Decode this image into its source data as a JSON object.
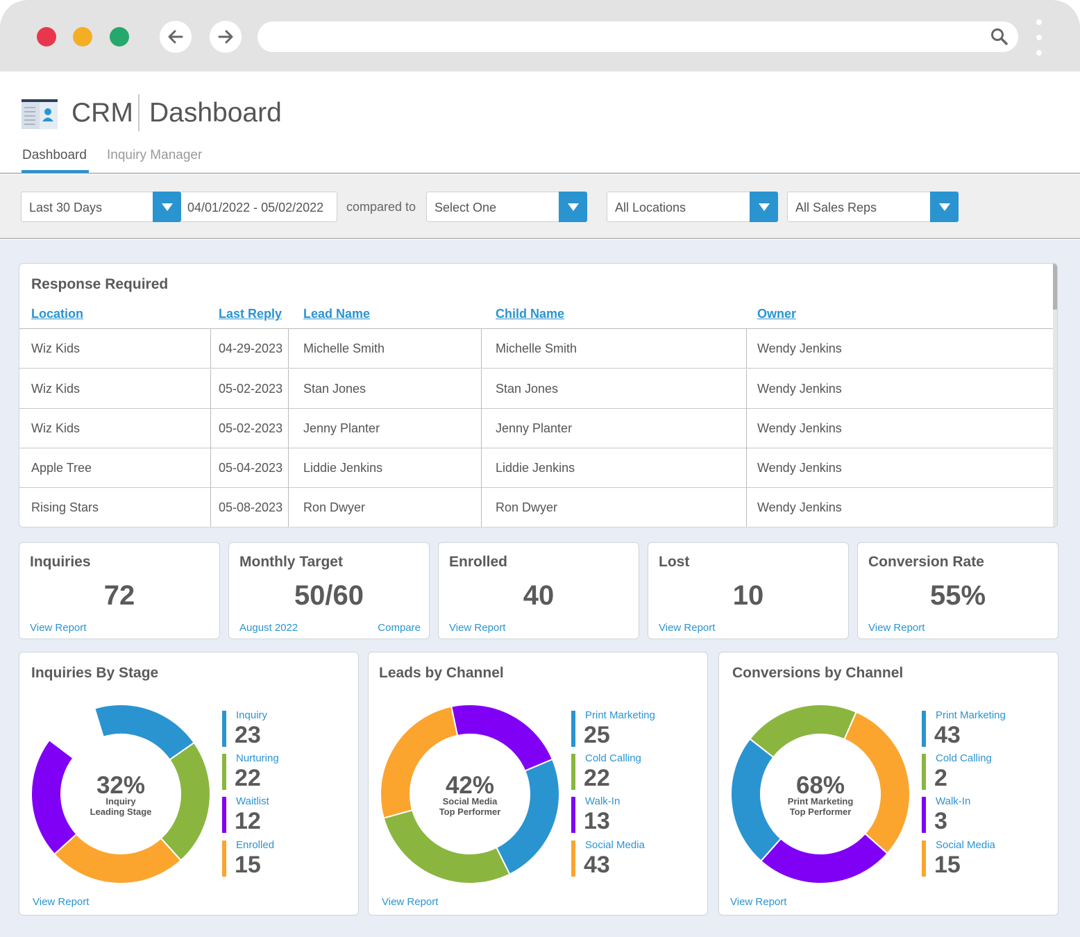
{
  "browser": {
    "url": ""
  },
  "app": {
    "name": "CRM",
    "page_title": "Dashboard"
  },
  "tabs": [
    {
      "label": "Dashboard",
      "active": true
    },
    {
      "label": "Inquiry Manager",
      "active": false
    }
  ],
  "filters": {
    "period": "Last 30 Days",
    "date_range": "04/01/2022 - 05/02/2022",
    "compared_to_label": "compared to",
    "compare": "Select One",
    "location": "All Locations",
    "sales_rep": "All Sales Reps"
  },
  "response_required": {
    "title": "Response Required",
    "columns": [
      "Location",
      "Last Reply",
      "Lead Name",
      "Child Name",
      "Owner"
    ],
    "rows": [
      [
        "Wiz Kids",
        "04-29-2023",
        "Michelle Smith",
        "Michelle Smith",
        "Wendy Jenkins"
      ],
      [
        "Wiz Kids",
        "05-02-2023",
        "Stan Jones",
        "Stan Jones",
        "Wendy Jenkins"
      ],
      [
        "Wiz Kids",
        "05-02-2023",
        "Jenny Planter",
        "Jenny Planter",
        "Wendy Jenkins"
      ],
      [
        "Apple Tree",
        "05-04-2023",
        "Liddie Jenkins",
        "Liddie Jenkins",
        "Wendy Jenkins"
      ],
      [
        "Rising Stars",
        "05-08-2023",
        "Ron Dwyer",
        "Ron Dwyer",
        "Wendy Jenkins"
      ]
    ]
  },
  "stats": [
    {
      "title": "Inquiries",
      "value": "72",
      "link": "View Report"
    },
    {
      "title": "Monthly Target",
      "value": "50/60",
      "link": "August 2022",
      "link2": "Compare"
    },
    {
      "title": "Enrolled",
      "value": "40",
      "link": "View Report"
    },
    {
      "title": "Lost",
      "value": "10",
      "link": "View Report"
    },
    {
      "title": "Conversion Rate",
      "value": "55%",
      "link": "View Report"
    }
  ],
  "colors": {
    "blue": "#2a94d1",
    "green": "#8ab63f",
    "orange": "#fba52f",
    "purple": "#8000f5"
  },
  "chart_data": [
    {
      "type": "pie",
      "title": "Inquiries By Stage",
      "center_value": "32%",
      "center_label": [
        "Inquiry",
        "Leading Stage"
      ],
      "categories": [
        "Inquiry",
        "Nurturing",
        "Waitlist",
        "Enrolled"
      ],
      "values": [
        23,
        22,
        12,
        15
      ],
      "arc_fractions": [
        0.2,
        0.23,
        0.25,
        0.22
      ],
      "colors": [
        "#2a94d1",
        "#8ab63f",
        "#fba52f",
        "#8000f5"
      ],
      "view_report": "View Report"
    },
    {
      "type": "pie",
      "title": "Leads by Channel",
      "center_value": "42%",
      "center_label": [
        "Social Media",
        "Top Performer"
      ],
      "categories": [
        "Print Marketing",
        "Cold Calling",
        "Walk-In",
        "Social Media"
      ],
      "values": [
        25,
        22,
        13,
        43
      ],
      "arc_fractions": [
        0.22,
        0.24,
        0.28,
        0.26
      ],
      "colors": [
        "#8000f5",
        "#2a94d1",
        "#8ab63f",
        "#fba52f"
      ],
      "view_report": "View Report"
    },
    {
      "type": "pie",
      "title": "Conversions by Channel",
      "center_value": "68%",
      "center_label": [
        "Print Marketing",
        "Top Performer"
      ],
      "categories": [
        "Print Marketing",
        "Cold Calling",
        "Walk-In",
        "Social Media"
      ],
      "values": [
        43,
        2,
        3,
        15
      ],
      "arc_fractions": [
        0.21,
        0.3,
        0.25,
        0.24
      ],
      "colors": [
        "#8ab63f",
        "#fba52f",
        "#8000f5",
        "#2a94d1"
      ],
      "view_report": "View Report"
    }
  ]
}
